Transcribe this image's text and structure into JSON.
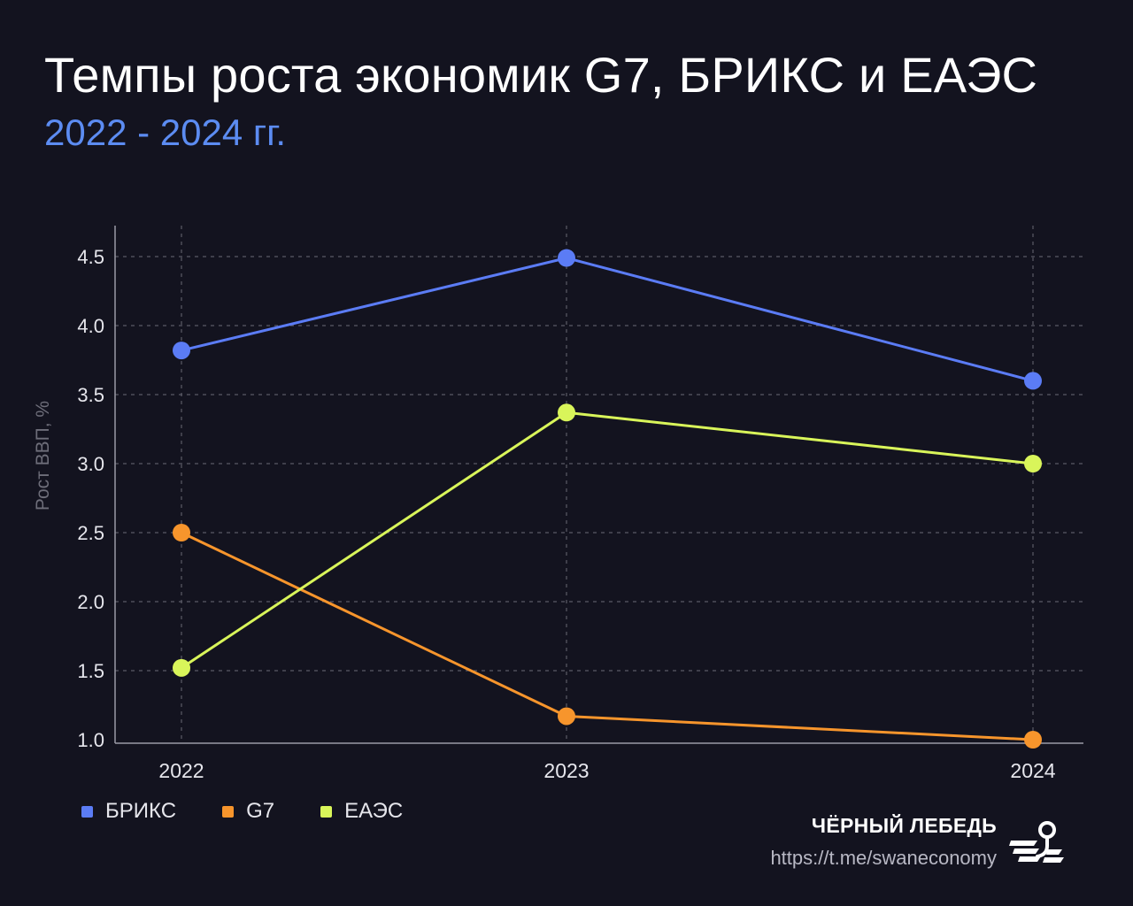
{
  "header": {
    "title": "Темпы роста экономик G7, БРИКС и ЕАЭС",
    "subtitle": "2022 - 2024 гг."
  },
  "chart_data": {
    "type": "line",
    "title": "Темпы роста экономик G7, БРИКС и ЕАЭС",
    "subtitle": "2022 - 2024 гг.",
    "xlabel": "",
    "ylabel": "Рост ВВП, %",
    "x": [
      "2022",
      "2023",
      "2024"
    ],
    "ylim": [
      1.0,
      4.7
    ],
    "yticks": [
      "1.0",
      "1.5",
      "2.0",
      "2.5",
      "3.0",
      "3.5",
      "4.0",
      "4.5"
    ],
    "grid": true,
    "legend_position": "bottom-left",
    "series": [
      {
        "name": "БРИКС",
        "color": "#5b7cf5",
        "values": [
          3.82,
          4.49,
          3.6
        ]
      },
      {
        "name": "G7",
        "color": "#f7952c",
        "values": [
          2.5,
          1.17,
          1.0
        ]
      },
      {
        "name": "ЕАЭС",
        "color": "#d9f55a",
        "values": [
          1.52,
          3.37,
          3.0
        ]
      }
    ]
  },
  "legend": {
    "items": [
      {
        "label": "БРИКС",
        "color": "#5b7cf5"
      },
      {
        "label": "G7",
        "color": "#f7952c"
      },
      {
        "label": "ЕАЭС",
        "color": "#d9f55a"
      }
    ]
  },
  "brand": {
    "name": "ЧЁРНЫЙ ЛЕБЕДЬ",
    "url": "https://t.me/swaneconomy",
    "logo_icon": "black-swan-logo-icon"
  },
  "colors": {
    "background": "#13131f",
    "grid": "#5a5a66",
    "axis": "#9a9aa6",
    "accent": "#5c8cf2"
  }
}
